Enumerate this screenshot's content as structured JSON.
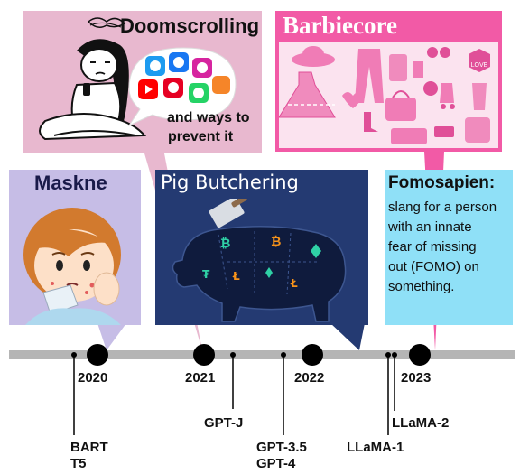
{
  "panels": {
    "doomscrolling": {
      "title": "Doomscrolling",
      "subtitle_line1": "and ways to",
      "subtitle_line2": "prevent it",
      "bg": "#e8b8cf"
    },
    "barbiecore": {
      "title": "Barbiecore",
      "bg": "#f25aa6",
      "inner_bg": "#fbe3ef"
    },
    "maskne": {
      "title": "Maskne",
      "bg": "#c6bde6"
    },
    "pig_butchering": {
      "title": "Pig Butchering",
      "bg": "#243a72"
    },
    "fomosapien": {
      "title": "Fomosapien:",
      "lines": [
        "slang for a person",
        "with an innate",
        "fear of missing",
        "out (FOMO) on",
        "something."
      ],
      "bg": "#8fe0f7"
    }
  },
  "illustration_text": {
    "love_sign": "LOVE"
  },
  "timeline": {
    "years": [
      "2020",
      "2021",
      "2022",
      "2023"
    ],
    "models": {
      "bart": "BART",
      "t5": "T5",
      "gptj": "GPT-J",
      "gpt35": "GPT-3.5",
      "gpt4": "GPT-4",
      "llama1": "LLaMA-1",
      "llama2": "LLaMA-2"
    }
  },
  "colors": {
    "timeline_bar": "#b5b5b5",
    "dot": "#000000"
  }
}
